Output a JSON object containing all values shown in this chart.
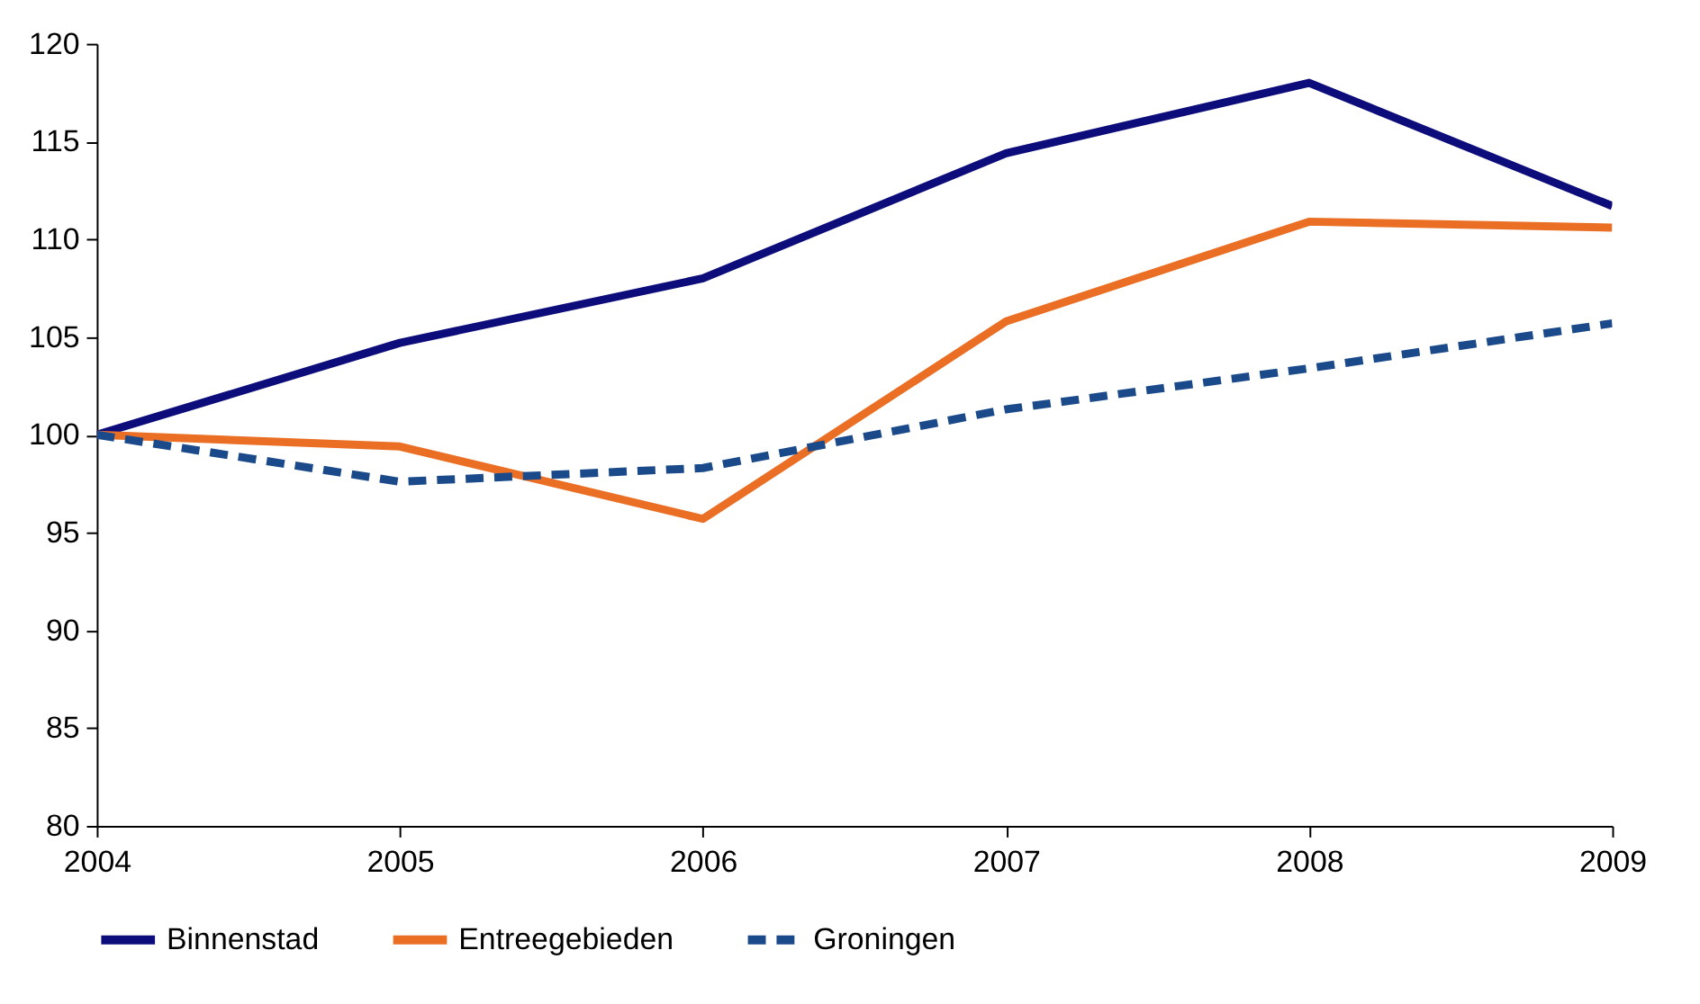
{
  "chart_data": {
    "type": "line",
    "x": [
      2004,
      2005,
      2006,
      2007,
      2008,
      2009
    ],
    "xlim": [
      2004,
      2009
    ],
    "xticks": [
      2004,
      2005,
      2006,
      2007,
      2008,
      2009
    ],
    "ylim": [
      80,
      120
    ],
    "yticks": [
      80,
      85,
      90,
      95,
      100,
      105,
      110,
      115,
      120
    ],
    "grid": false,
    "legend": "bottom",
    "series": [
      {
        "name": "Binnenstad",
        "color": "#0c0c7a",
        "line_style": "solid",
        "values": [
          100,
          104.7,
          108.0,
          114.4,
          118.0,
          111.7
        ]
      },
      {
        "name": "Entreegebieden",
        "color": "#ea6f25",
        "line_style": "solid",
        "values": [
          100,
          99.4,
          95.7,
          105.8,
          110.9,
          110.6
        ]
      },
      {
        "name": "Groningen",
        "color": "#1b4a8a",
        "line_style": "dashed",
        "values": [
          100,
          97.6,
          98.3,
          101.3,
          103.4,
          105.7
        ]
      }
    ]
  }
}
